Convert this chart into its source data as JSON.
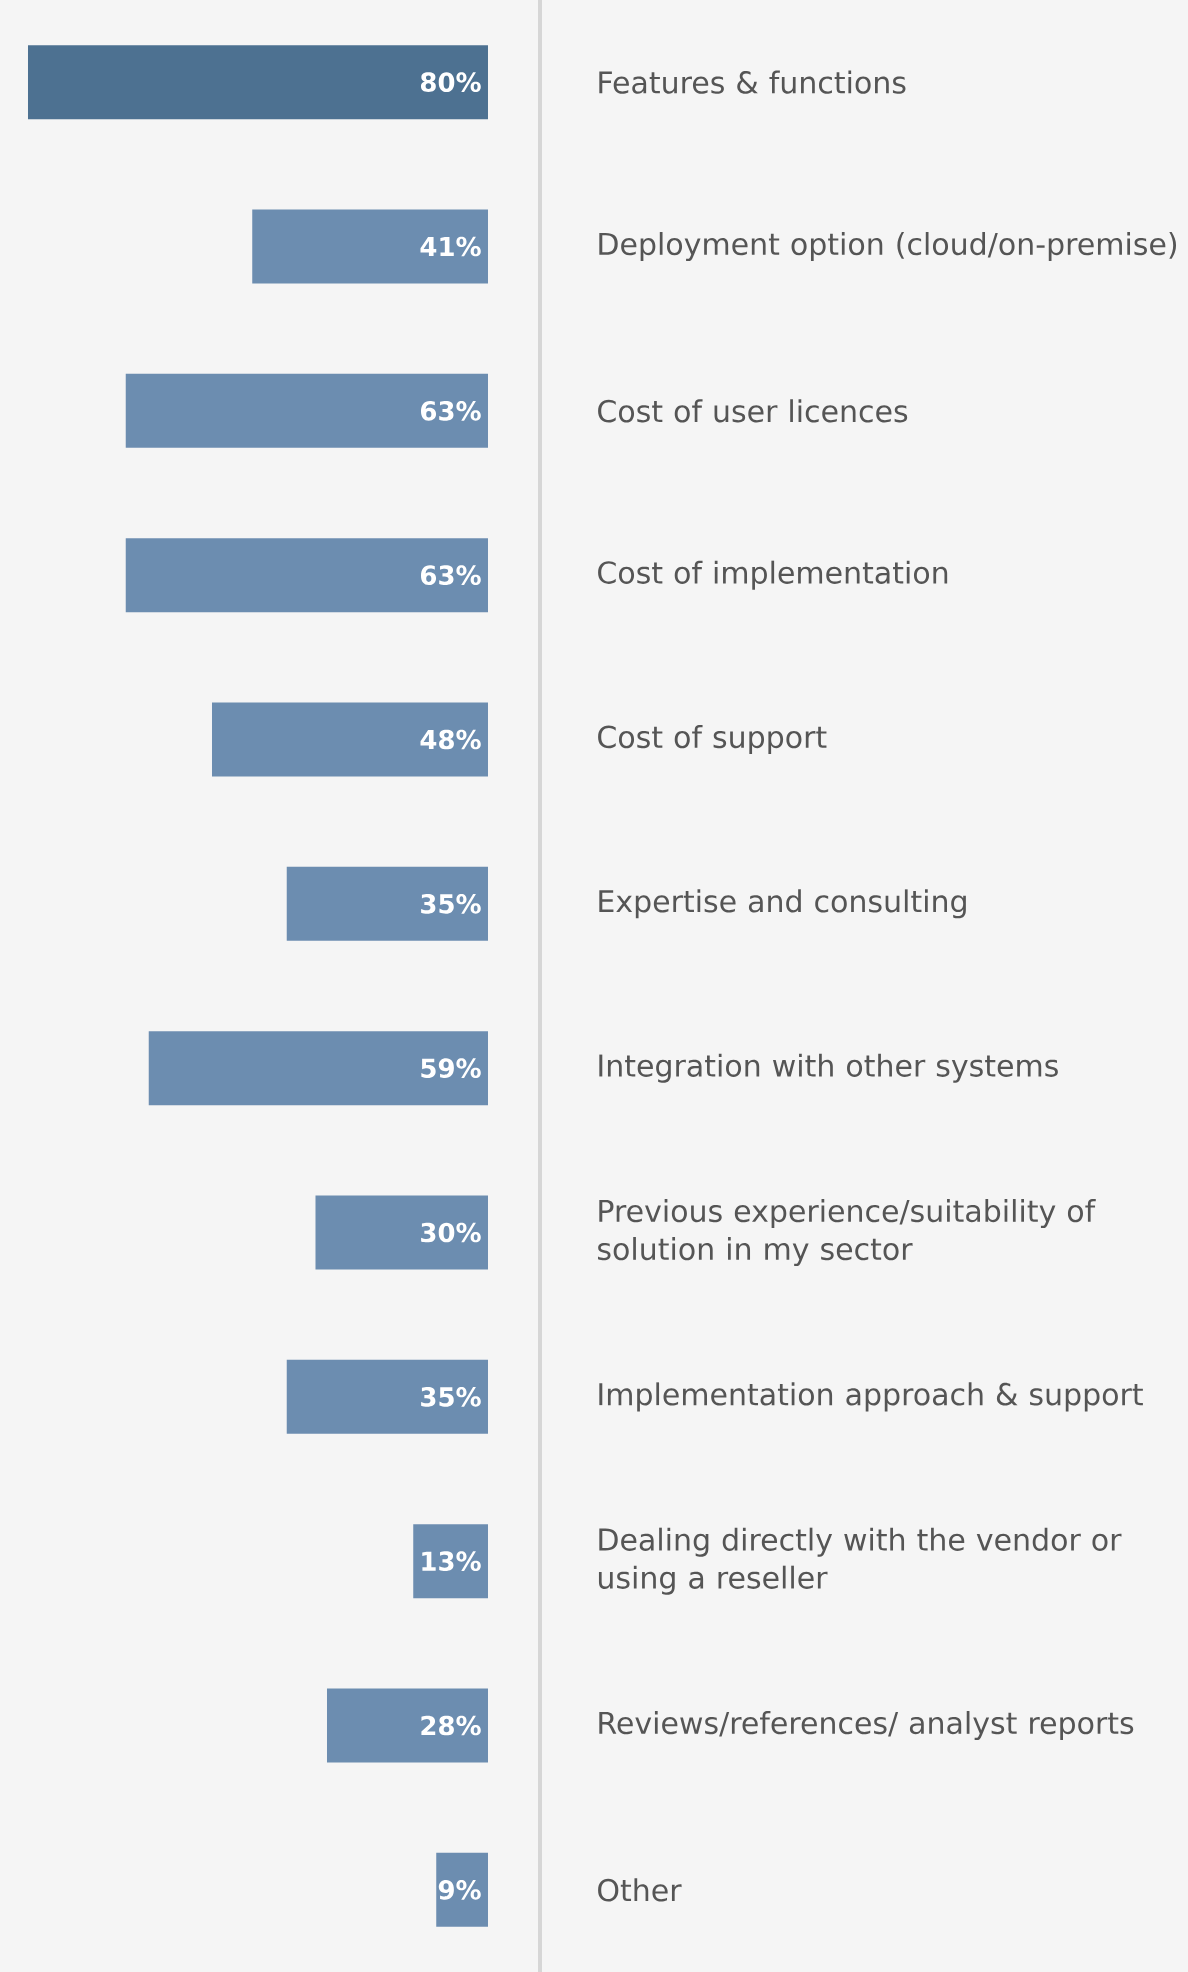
{
  "chart_data": {
    "type": "bar",
    "orientation": "horizontal",
    "categories": [
      "Features & functions",
      "Deployment option (cloud/on-premise)",
      "Cost of user licences",
      "Cost of implementation",
      "Cost of support",
      "Expertise and consulting",
      "Integration with other systems",
      "Previous experience/suitability of solution in my sector",
      "Implementation approach & support",
      "Dealing directly with the vendor or using a reseller",
      "Reviews/references/ analyst reports",
      "Other"
    ],
    "values": [
      80,
      41,
      63,
      63,
      48,
      35,
      59,
      30,
      35,
      13,
      28,
      9
    ],
    "value_labels": [
      "80%",
      "41%",
      "63%",
      "63%",
      "48%",
      "35%",
      "59%",
      "30%",
      "35%",
      "13%",
      "28%",
      "9%"
    ],
    "colors": [
      "#4d7191",
      "#6c8db0",
      "#6c8db0",
      "#6c8db0",
      "#6c8db0",
      "#6c8db0",
      "#6c8db0",
      "#6c8db0",
      "#6c8db0",
      "#6c8db0",
      "#6c8db0",
      "#6c8db0"
    ]
  }
}
